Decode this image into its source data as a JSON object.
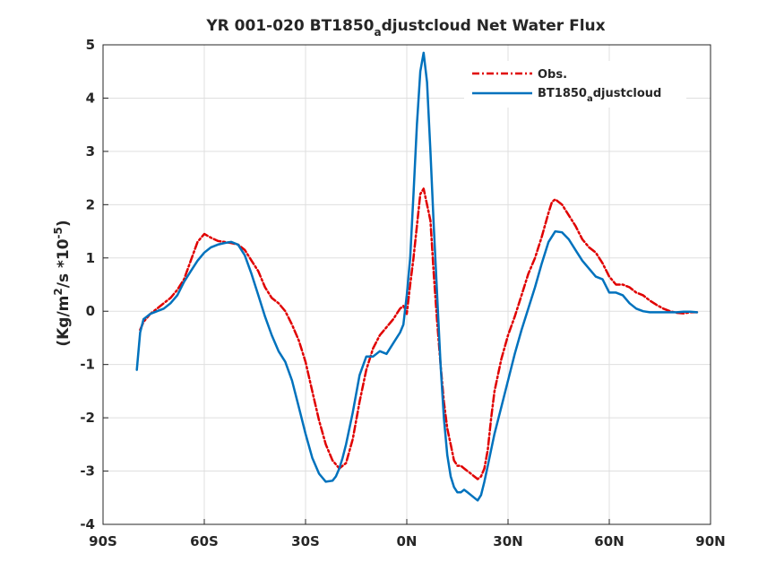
{
  "chart_data": {
    "type": "line",
    "title": "YR 001-020 BT1850adjustcloud  Net Water Flux",
    "title_parts": [
      "YR 001-020 BT1850",
      "a",
      "djustcloud  Net Water Flux"
    ],
    "ylabel": "(Kg/m2/s *10-5)",
    "ylabel_parts": [
      "(Kg/m",
      "2",
      "/s *10",
      "-5",
      ")"
    ],
    "xlabel": "",
    "xlim": [
      -90,
      90
    ],
    "ylim": [
      -4,
      5
    ],
    "xticks": [
      -90,
      -60,
      -30,
      0,
      30,
      60,
      90
    ],
    "xtick_labels": [
      "90S",
      "60S",
      "30S",
      "0N",
      "30N",
      "60N",
      "90N"
    ],
    "yticks": [
      -4,
      -3,
      -2,
      -1,
      0,
      1,
      2,
      3,
      4,
      5
    ],
    "ytick_labels": [
      "-4",
      "-3",
      "-2",
      "-1",
      "0",
      "1",
      "2",
      "3",
      "4",
      "5"
    ],
    "grid": true,
    "legend_position": "top-right",
    "series": [
      {
        "name": "Obs.",
        "legend_parts": [
          "Obs.",
          "",
          ""
        ],
        "color": "#e00000",
        "style": "dashed",
        "x": [
          -79,
          -78,
          -76,
          -74,
          -72,
          -70,
          -68,
          -66,
          -64,
          -62,
          -60,
          -58,
          -56,
          -54,
          -52,
          -50,
          -48,
          -46,
          -44,
          -42,
          -40,
          -38,
          -36,
          -34,
          -32,
          -30,
          -28,
          -26,
          -24,
          -22,
          -20,
          -18,
          -16,
          -14,
          -12,
          -10,
          -8,
          -6,
          -4,
          -2,
          -1,
          0,
          1,
          2,
          3,
          4,
          5,
          6,
          7,
          8,
          9,
          10,
          11,
          12,
          13,
          14,
          15,
          16,
          17,
          18,
          19,
          20,
          21,
          22,
          23,
          24,
          25,
          26,
          28,
          30,
          32,
          34,
          36,
          38,
          40,
          42,
          43,
          44,
          46,
          48,
          50,
          52,
          54,
          56,
          58,
          60,
          62,
          64,
          66,
          68,
          70,
          72,
          74,
          76,
          78,
          80,
          82,
          84,
          86
        ],
        "values": [
          -0.35,
          -0.2,
          -0.05,
          0.05,
          0.15,
          0.25,
          0.4,
          0.6,
          0.95,
          1.3,
          1.45,
          1.38,
          1.32,
          1.3,
          1.28,
          1.25,
          1.15,
          0.95,
          0.75,
          0.45,
          0.25,
          0.15,
          0.0,
          -0.25,
          -0.55,
          -0.95,
          -1.5,
          -2.05,
          -2.5,
          -2.8,
          -2.95,
          -2.85,
          -2.4,
          -1.7,
          -1.1,
          -0.7,
          -0.45,
          -0.3,
          -0.15,
          0.05,
          0.1,
          -0.05,
          0.5,
          1.0,
          1.6,
          2.2,
          2.3,
          2.0,
          1.7,
          0.7,
          -0.2,
          -1.0,
          -1.7,
          -2.2,
          -2.5,
          -2.8,
          -2.9,
          -2.9,
          -2.95,
          -3.0,
          -3.05,
          -3.1,
          -3.15,
          -3.1,
          -2.95,
          -2.6,
          -2.0,
          -1.5,
          -0.9,
          -0.45,
          -0.1,
          0.3,
          0.7,
          1.0,
          1.4,
          1.85,
          2.05,
          2.1,
          2.0,
          1.8,
          1.6,
          1.35,
          1.2,
          1.1,
          0.9,
          0.65,
          0.5,
          0.5,
          0.45,
          0.35,
          0.3,
          0.2,
          0.12,
          0.05,
          0.0,
          -0.03,
          -0.04,
          -0.02,
          -0.02
        ]
      },
      {
        "name": "BT1850adjustcloud",
        "legend_parts": [
          "BT1850",
          "a",
          "djustcloud"
        ],
        "color": "#0072bd",
        "style": "solid",
        "x": [
          -80,
          -79,
          -78,
          -76,
          -74,
          -72,
          -70,
          -68,
          -66,
          -64,
          -62,
          -60,
          -58,
          -56,
          -54,
          -52,
          -50,
          -48,
          -46,
          -44,
          -42,
          -40,
          -38,
          -36,
          -34,
          -32,
          -30,
          -28,
          -26,
          -24,
          -22,
          -21,
          -20,
          -19,
          -18,
          -16,
          -14,
          -12,
          -10,
          -8,
          -6,
          -4,
          -2,
          -1,
          0,
          1,
          2,
          3,
          4,
          5,
          6,
          7,
          8,
          9,
          10,
          11,
          12,
          13,
          14,
          15,
          16,
          17,
          18,
          19,
          20,
          21,
          22,
          23,
          24,
          26,
          28,
          30,
          32,
          34,
          36,
          38,
          40,
          42,
          44,
          46,
          48,
          50,
          52,
          54,
          56,
          58,
          60,
          62,
          64,
          66,
          68,
          70,
          72,
          74,
          76,
          78,
          80,
          82,
          84,
          86
        ],
        "values": [
          -1.1,
          -0.4,
          -0.15,
          -0.05,
          0.0,
          0.05,
          0.15,
          0.3,
          0.55,
          0.75,
          0.95,
          1.1,
          1.2,
          1.25,
          1.28,
          1.3,
          1.25,
          1.05,
          0.7,
          0.3,
          -0.1,
          -0.45,
          -0.75,
          -0.95,
          -1.3,
          -1.8,
          -2.3,
          -2.75,
          -3.05,
          -3.2,
          -3.18,
          -3.1,
          -2.95,
          -2.75,
          -2.5,
          -1.9,
          -1.2,
          -0.85,
          -0.85,
          -0.75,
          -0.8,
          -0.6,
          -0.4,
          -0.25,
          0.3,
          1.0,
          2.2,
          3.5,
          4.5,
          4.85,
          4.3,
          3.0,
          1.6,
          0.3,
          -1.0,
          -2.0,
          -2.7,
          -3.1,
          -3.3,
          -3.4,
          -3.4,
          -3.35,
          -3.4,
          -3.45,
          -3.5,
          -3.55,
          -3.45,
          -3.2,
          -2.9,
          -2.3,
          -1.8,
          -1.3,
          -0.8,
          -0.35,
          0.05,
          0.45,
          0.9,
          1.3,
          1.5,
          1.48,
          1.35,
          1.15,
          0.95,
          0.8,
          0.65,
          0.6,
          0.35,
          0.35,
          0.3,
          0.15,
          0.05,
          0.0,
          -0.02,
          -0.02,
          -0.02,
          -0.02,
          -0.02,
          -0.01,
          -0.01,
          -0.02
        ]
      }
    ]
  }
}
